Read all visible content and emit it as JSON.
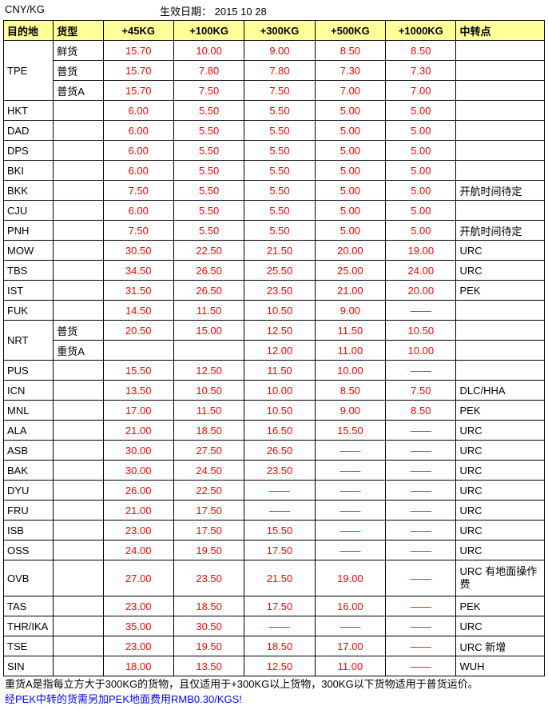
{
  "top": {
    "unit": "CNY/KG",
    "effective_label": "生效日期：  2015 10 28"
  },
  "headers": {
    "dest": "目的地",
    "type": "货型",
    "w45": "+45KG",
    "w100": "+100KG",
    "w300": "+300KG",
    "w500": "+500KG",
    "w1000": "+1000KG",
    "trans": "中转点"
  },
  "rows": [
    {
      "dest": "TPE",
      "dest_rowspan": 3,
      "type": "鲜货",
      "w45": "15.70",
      "w100": "10.00",
      "w300": "9.00",
      "w500": "8.50",
      "w1000": "8.50",
      "trans": ""
    },
    {
      "type": "普货",
      "w45": "15.70",
      "w100": "7.80",
      "w300": "7.80",
      "w500": "7.30",
      "w1000": "7.30",
      "trans": ""
    },
    {
      "type": "普货A",
      "w45": "15.70",
      "w100": "7.50",
      "w300": "7.50",
      "w500": "7.00",
      "w1000": "7.00",
      "trans": ""
    },
    {
      "dest": "HKT",
      "type": "",
      "w45": "6.00",
      "w100": "5.50",
      "w300": "5.50",
      "w500": "5.00",
      "w1000": "5.00",
      "trans": ""
    },
    {
      "dest": "DAD",
      "type": "",
      "w45": "6.00",
      "w100": "5.50",
      "w300": "5.50",
      "w500": "5.00",
      "w1000": "5.00",
      "trans": ""
    },
    {
      "dest": "DPS",
      "type": "",
      "w45": "6.00",
      "w100": "5.50",
      "w300": "5.50",
      "w500": "5.00",
      "w1000": "5.00",
      "trans": ""
    },
    {
      "dest": "BKI",
      "type": "",
      "w45": "6.00",
      "w100": "5.50",
      "w300": "5.50",
      "w500": "5.00",
      "w1000": "5.00",
      "trans": ""
    },
    {
      "dest": "BKK",
      "type": "",
      "w45": "7.50",
      "w100": "5.50",
      "w300": "5.50",
      "w500": "5.00",
      "w1000": "5.00",
      "trans": "开航时间待定"
    },
    {
      "dest": "CJU",
      "type": "",
      "w45": "6.00",
      "w100": "5.50",
      "w300": "5.50",
      "w500": "5.00",
      "w1000": "5.00",
      "trans": ""
    },
    {
      "dest": "PNH",
      "type": "",
      "w45": "7.50",
      "w100": "5.50",
      "w300": "5.50",
      "w500": "5.00",
      "w1000": "5.00",
      "trans": "开航时间待定"
    },
    {
      "dest": "MOW",
      "type": "",
      "w45": "30.50",
      "w100": "22.50",
      "w300": "21.50",
      "w500": "20.00",
      "w1000": "19.00",
      "trans": "URC"
    },
    {
      "dest": "TBS",
      "type": "",
      "w45": "34.50",
      "w100": "26.50",
      "w300": "25.50",
      "w500": "25.00",
      "w1000": "24.00",
      "trans": "URC"
    },
    {
      "dest": "IST",
      "type": "",
      "w45": "31.50",
      "w100": "26.50",
      "w300": "23.50",
      "w500": "21.00",
      "w1000": "20.00",
      "trans": "PEK"
    },
    {
      "dest": "FUK",
      "type": "",
      "w45": "14.50",
      "w100": "11.50",
      "w300": "10.50",
      "w500": "9.00",
      "w1000": "——",
      "trans": ""
    },
    {
      "dest": "NRT",
      "dest_rowspan": 2,
      "type": "普货",
      "w45": "20.50",
      "w100": "15.00",
      "w300": "12.50",
      "w500": "11.50",
      "w1000": "10.50",
      "trans": ""
    },
    {
      "type": "重货A",
      "w45": "",
      "w100": "",
      "w300": "12.00",
      "w500": "11.00",
      "w1000": "10.00",
      "trans": ""
    },
    {
      "dest": "PUS",
      "type": "",
      "w45": "15.50",
      "w100": "12.50",
      "w300": "11.50",
      "w500": "10.00",
      "w1000": "——",
      "trans": ""
    },
    {
      "dest": "ICN",
      "type": "",
      "w45": "13.50",
      "w100": "10.50",
      "w300": "10.00",
      "w500": "8.50",
      "w1000": "7.50",
      "trans": "DLC/HHA"
    },
    {
      "dest": "MNL",
      "type": "",
      "w45": "17.00",
      "w100": "11.50",
      "w300": "10.50",
      "w500": "9.00",
      "w1000": "8.50",
      "trans": "PEK"
    },
    {
      "dest": "ALA",
      "type": "",
      "w45": "21.00",
      "w100": "18.50",
      "w300": "16.50",
      "w500": "15.50",
      "w1000": "——",
      "trans": "URC"
    },
    {
      "dest": "ASB",
      "type": "",
      "w45": "30.00",
      "w100": "27.50",
      "w300": "26.50",
      "w500": "——",
      "w1000": "——",
      "trans": "URC"
    },
    {
      "dest": "BAK",
      "type": "",
      "w45": "30.00",
      "w100": "24.50",
      "w300": "23.50",
      "w500": "——",
      "w1000": "——",
      "trans": "URC"
    },
    {
      "dest": "DYU",
      "type": "",
      "w45": "26.00",
      "w100": "22.50",
      "w300": "——",
      "w500": "——",
      "w1000": "——",
      "trans": "URC"
    },
    {
      "dest": "FRU",
      "type": "",
      "w45": "21.00",
      "w100": "17.50",
      "w300": "——",
      "w500": "——",
      "w1000": "——",
      "trans": "URC"
    },
    {
      "dest": "ISB",
      "type": "",
      "w45": "23.00",
      "w100": "17.50",
      "w300": "15.50",
      "w500": "——",
      "w1000": "——",
      "trans": "URC"
    },
    {
      "dest": "OSS",
      "type": "",
      "w45": "24.00",
      "w100": "19.50",
      "w300": "17.50",
      "w500": "——",
      "w1000": "——",
      "trans": "URC"
    },
    {
      "dest": "OVB",
      "tall": true,
      "type": "",
      "w45": "27.00",
      "w100": "23.50",
      "w300": "21.50",
      "w500": "19.00",
      "w1000": "——",
      "trans": "URC 有地面操作费"
    },
    {
      "dest": "TAS",
      "type": "",
      "w45": "23.00",
      "w100": "18.50",
      "w300": "17.50",
      "w500": "16.00",
      "w1000": "——",
      "trans": "PEK"
    },
    {
      "dest": "THR/IKA",
      "type": "",
      "w45": "35.00",
      "w100": "30.50",
      "w300": "——",
      "w500": "——",
      "w1000": "——",
      "trans": "URC"
    },
    {
      "dest": "TSE",
      "type": "",
      "w45": "23.00",
      "w100": "19.50",
      "w300": "18.50",
      "w500": "17.00",
      "w1000": "——",
      "trans": "URC  新增"
    },
    {
      "dest": "SIN",
      "type": "",
      "w45": "18.00",
      "w100": "13.50",
      "w300": "12.50",
      "w500": "11.00",
      "w1000": "——",
      "trans": "WUH"
    }
  ],
  "footnotes": {
    "note1": "重货A是指每立方大于300KG的货物，且仅适用于+300KG以上货物，300KG以下货物适用于普货运价。",
    "note2": "经PEK中转的货需另加PEK地面费用RMB0.30/KGS!"
  },
  "dash": "——",
  "colors": {
    "header_bg": "#ffff99",
    "price": "#ff0000",
    "link": "#0000ff",
    "border": "#000000",
    "text": "#000000",
    "bg": "#ffffff"
  }
}
